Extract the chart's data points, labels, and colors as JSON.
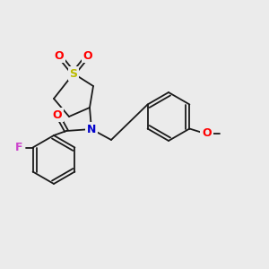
{
  "bg_color": "#ebebeb",
  "bond_color": "#1a1a1a",
  "bond_width": 1.3,
  "atom_colors": {
    "S": "#bbbb00",
    "O": "#ff0000",
    "N": "#0000cc",
    "F": "#cc44cc",
    "C_label": "#1a1a1a"
  },
  "figsize": [
    3.0,
    3.0
  ],
  "dpi": 100
}
